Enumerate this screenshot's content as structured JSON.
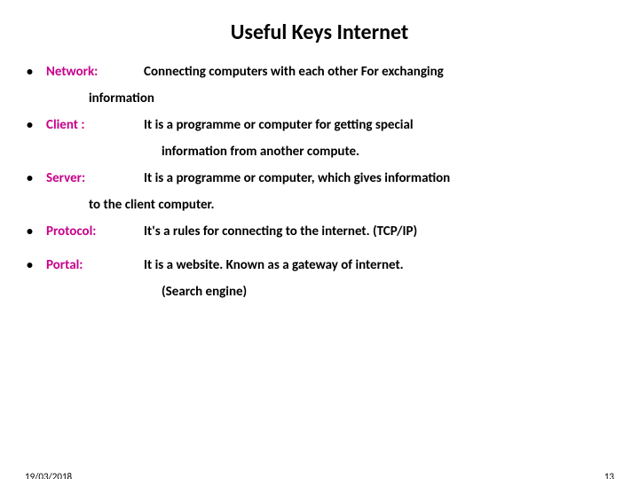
{
  "title": "Useful Keys Internet",
  "items": [
    {
      "term": "Network:",
      "def": "Connecting computers with each other For exchanging",
      "cont": [
        "information"
      ],
      "cont_indent": "small"
    },
    {
      "term": "Client :",
      "def": "It is a programme or computer for getting special",
      "cont": [
        "information from another compute."
      ],
      "cont_indent": "large"
    },
    {
      "term": "Server:",
      "def": " It is a programme or computer, which gives information",
      "cont": [
        "to the client computer."
      ],
      "cont_indent": "small"
    },
    {
      "term": "Protocol:",
      "def": "It's a rules for connecting to the internet. (TCP/IP)",
      "cont": [],
      "cont_indent": "small"
    },
    {
      "term": "Portal:",
      "def": "It is a website. Known as a gateway of internet.",
      "cont": [
        "(Search engine)"
      ],
      "cont_indent": "large"
    }
  ],
  "footer": {
    "date": "19/03/2018",
    "page": "13"
  },
  "colors": {
    "term": "#c8008a",
    "text": "#000000",
    "background": "#ffffff"
  },
  "typography": {
    "title_fontsize": 24,
    "body_fontsize": 15,
    "footer_fontsize": 11,
    "weight": 700
  }
}
